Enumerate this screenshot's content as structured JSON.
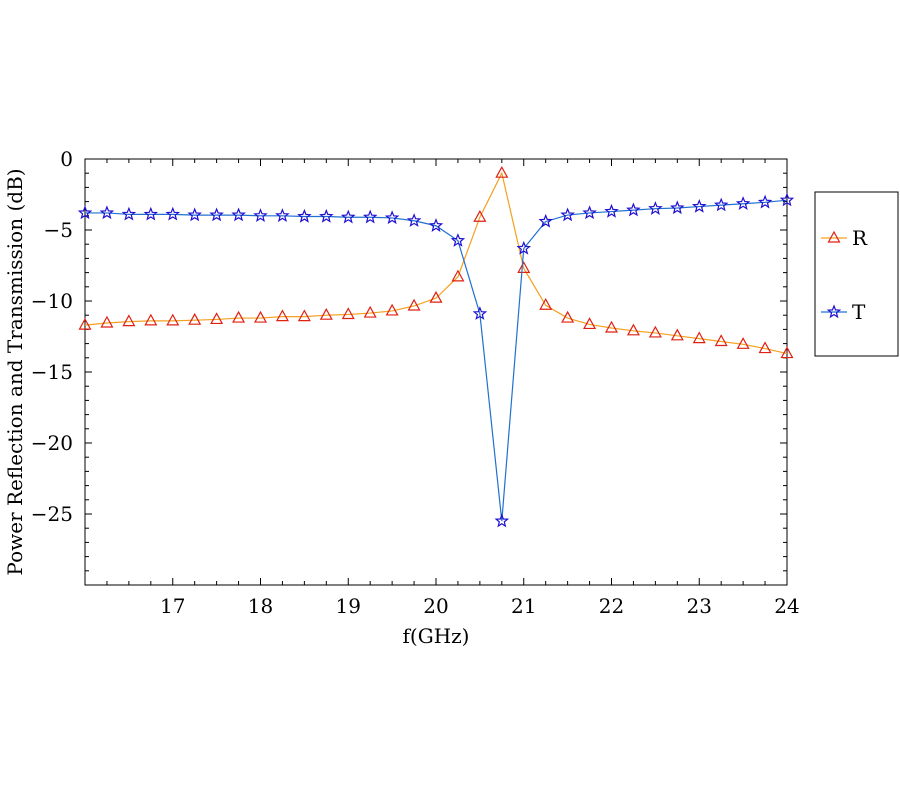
{
  "chart_data": {
    "type": "line",
    "title": "",
    "xlabel": "f(GHz)",
    "ylabel": "Power Reflection and Transmission (dB)",
    "xlim": [
      16,
      24
    ],
    "ylim": [
      -30,
      0
    ],
    "xticks": [
      17,
      18,
      19,
      20,
      21,
      22,
      23,
      24
    ],
    "yticks": [
      0,
      -5,
      -10,
      -15,
      -20,
      -25
    ],
    "ytick_labels": [
      "0",
      "−5",
      "−10",
      "−15",
      "−20",
      "−25"
    ],
    "grid": false,
    "legend_position": "right",
    "x": [
      16,
      16.25,
      16.5,
      16.75,
      17,
      17.25,
      17.5,
      17.75,
      18,
      18.25,
      18.5,
      18.75,
      19,
      19.25,
      19.5,
      19.75,
      20,
      20.25,
      20.5,
      20.75,
      21,
      21.25,
      21.5,
      21.75,
      22,
      22.25,
      22.5,
      22.75,
      23,
      23.25,
      23.5,
      23.75,
      24
    ],
    "series": [
      {
        "name": "R",
        "marker": "triangle",
        "line_color": "#f5a020",
        "marker_color": "#e02010",
        "values": [
          -11.7,
          -11.55,
          -11.45,
          -11.4,
          -11.4,
          -11.35,
          -11.3,
          -11.2,
          -11.2,
          -11.1,
          -11.1,
          -11.0,
          -10.95,
          -10.85,
          -10.7,
          -10.35,
          -9.8,
          -8.3,
          -4.1,
          -1.0,
          -7.7,
          -10.3,
          -11.2,
          -11.65,
          -11.9,
          -12.1,
          -12.25,
          -12.45,
          -12.65,
          -12.85,
          -13.05,
          -13.35,
          -13.7
        ]
      },
      {
        "name": "T",
        "marker": "star",
        "line_color": "#2070d0",
        "marker_color": "#2010d0",
        "values": [
          -3.8,
          -3.8,
          -3.9,
          -3.9,
          -3.9,
          -3.95,
          -3.95,
          -3.95,
          -4.0,
          -4.0,
          -4.05,
          -4.05,
          -4.1,
          -4.1,
          -4.15,
          -4.35,
          -4.7,
          -5.75,
          -10.9,
          -25.5,
          -6.3,
          -4.4,
          -3.95,
          -3.8,
          -3.7,
          -3.6,
          -3.5,
          -3.45,
          -3.35,
          -3.25,
          -3.15,
          -3.05,
          -2.9
        ]
      }
    ]
  }
}
